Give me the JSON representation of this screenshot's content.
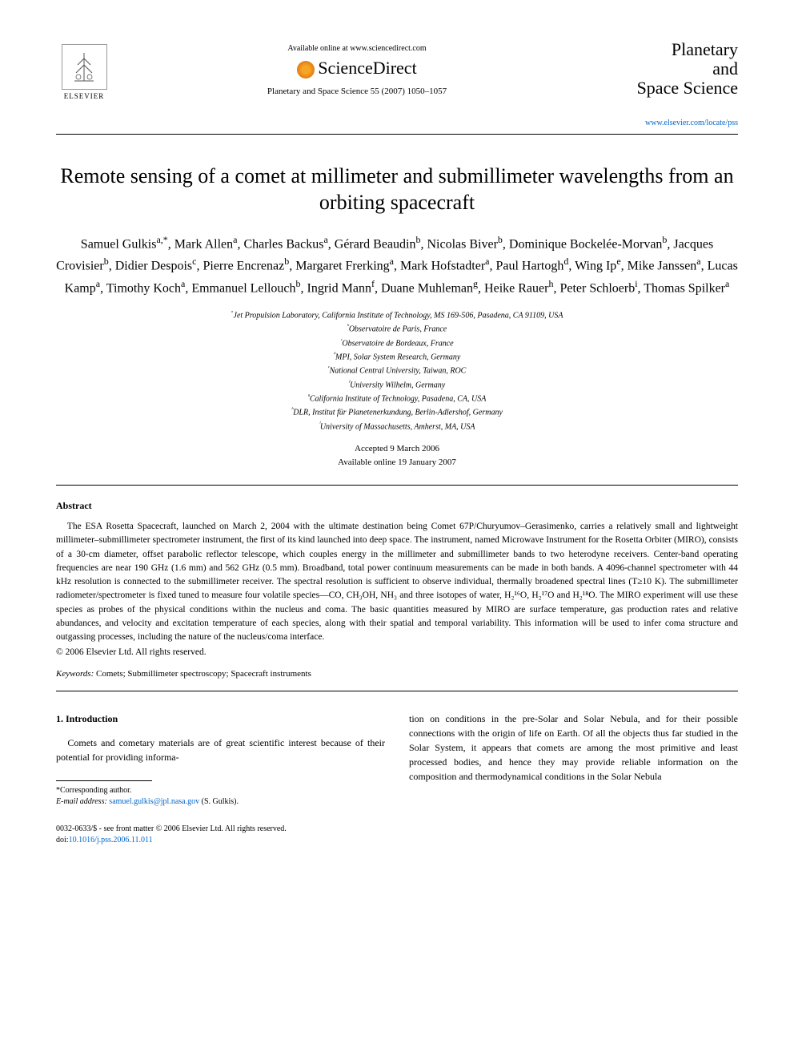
{
  "header": {
    "publisher": "ELSEVIER",
    "available_text": "Available online at www.sciencedirect.com",
    "platform": "ScienceDirect",
    "citation": "Planetary and Space Science 55 (2007) 1050–1057",
    "journal_name_line1": "Planetary",
    "journal_name_line2": "and",
    "journal_name_line3": "Space Science",
    "journal_url": "www.elsevier.com/locate/pss"
  },
  "title": "Remote sensing of a comet at millimeter and submillimeter wavelengths from an orbiting spacecraft",
  "authors_html": "Samuel Gulkis<sup>a,*</sup>, Mark Allen<sup>a</sup>, Charles Backus<sup>a</sup>, Gérard Beaudin<sup>b</sup>, Nicolas Biver<sup>b</sup>, Dominique Bockelée-Morvan<sup>b</sup>, Jacques Crovisier<sup>b</sup>, Didier Despois<sup>c</sup>, Pierre Encrenaz<sup>b</sup>, Margaret Frerking<sup>a</sup>, Mark Hofstadter<sup>a</sup>, Paul Hartogh<sup>d</sup>, Wing Ip<sup>e</sup>, Mike Janssen<sup>a</sup>, Lucas Kamp<sup>a</sup>, Timothy Koch<sup>a</sup>, Emmanuel Lellouch<sup>b</sup>, Ingrid Mann<sup>f</sup>, Duane Muhleman<sup>g</sup>, Heike Rauer<sup>h</sup>, Peter Schloerb<sup>i</sup>, Thomas Spilker<sup>a</sup>",
  "affiliations": [
    "ᵃJet Propulsion Laboratory, California Institute of Technology, MS 169-506, Pasadena, CA 91109, USA",
    "ᵇObservatoire de Paris, France",
    "ᶜObservatoire de Bordeaux, France",
    "ᵈMPI, Solar System Research, Germany",
    "ᵉNational Central University, Taiwan, ROC",
    "ᶠUniversity Wilhelm, Germany",
    "ᵍCalifornia Institute of Technology, Pasadena, CA, USA",
    "ʰDLR, Institut für Planetenerkundung, Berlin-Adlershof, Germany",
    "ⁱUniversity of Massachusetts, Amherst, MA, USA"
  ],
  "dates": {
    "accepted": "Accepted 9 March 2006",
    "online": "Available online 19 January 2007"
  },
  "abstract": {
    "heading": "Abstract",
    "text": "The ESA Rosetta Spacecraft, launched on March 2, 2004 with the ultimate destination being Comet 67P/Churyumov–Gerasimenko, carries a relatively small and lightweight millimeter–submillimeter spectrometer instrument, the first of its kind launched into deep space. The instrument, named Microwave Instrument for the Rosetta Orbiter (MIRO), consists of a 30-cm diameter, offset parabolic reflector telescope, which couples energy in the millimeter and submillimeter bands to two heterodyne receivers. Center-band operating frequencies are near 190 GHz (1.6 mm) and 562 GHz (0.5 mm). Broadband, total power continuum measurements can be made in both bands. A 4096-channel spectrometer with 44 kHz resolution is connected to the submillimeter receiver. The spectral resolution is sufficient to observe individual, thermally broadened spectral lines (T≥10 K). The submillimeter radiometer/spectrometer is fixed tuned to measure four volatile species—CO, CH₃OH, NH₃ and three isotopes of water, H₂¹⁶O, H₂¹⁷O and H₂¹⁸O. The MIRO experiment will use these species as probes of the physical conditions within the nucleus and coma. The basic quantities measured by MIRO are surface temperature, gas production rates and relative abundances, and velocity and excitation temperature of each species, along with their spatial and temporal variability. This information will be used to infer coma structure and outgassing processes, including the nature of the nucleus/coma interface.",
    "copyright": "© 2006 Elsevier Ltd. All rights reserved."
  },
  "keywords": {
    "label": "Keywords:",
    "text": "Comets; Submillimeter spectroscopy; Spacecraft instruments"
  },
  "body": {
    "section_heading": "1. Introduction",
    "col1_text": "Comets and cometary materials are of great scientific interest because of their potential for providing informa-",
    "col2_text": "tion on conditions in the pre-Solar and Solar Nebula, and for their possible connections with the origin of life on Earth. Of all the objects thus far studied in the Solar System, it appears that comets are among the most primitive and least processed bodies, and hence they may provide reliable information on the composition and thermodynamical conditions in the Solar Nebula"
  },
  "footnotes": {
    "corresponding": "*Corresponding author.",
    "email_label": "E-mail address:",
    "email": "samuel.gulkis@jpl.nasa.gov",
    "email_name": "(S. Gulkis)."
  },
  "bottom": {
    "issn": "0032-0633/$ - see front matter © 2006 Elsevier Ltd. All rights reserved.",
    "doi_label": "doi:",
    "doi": "10.1016/j.pss.2006.11.011"
  }
}
